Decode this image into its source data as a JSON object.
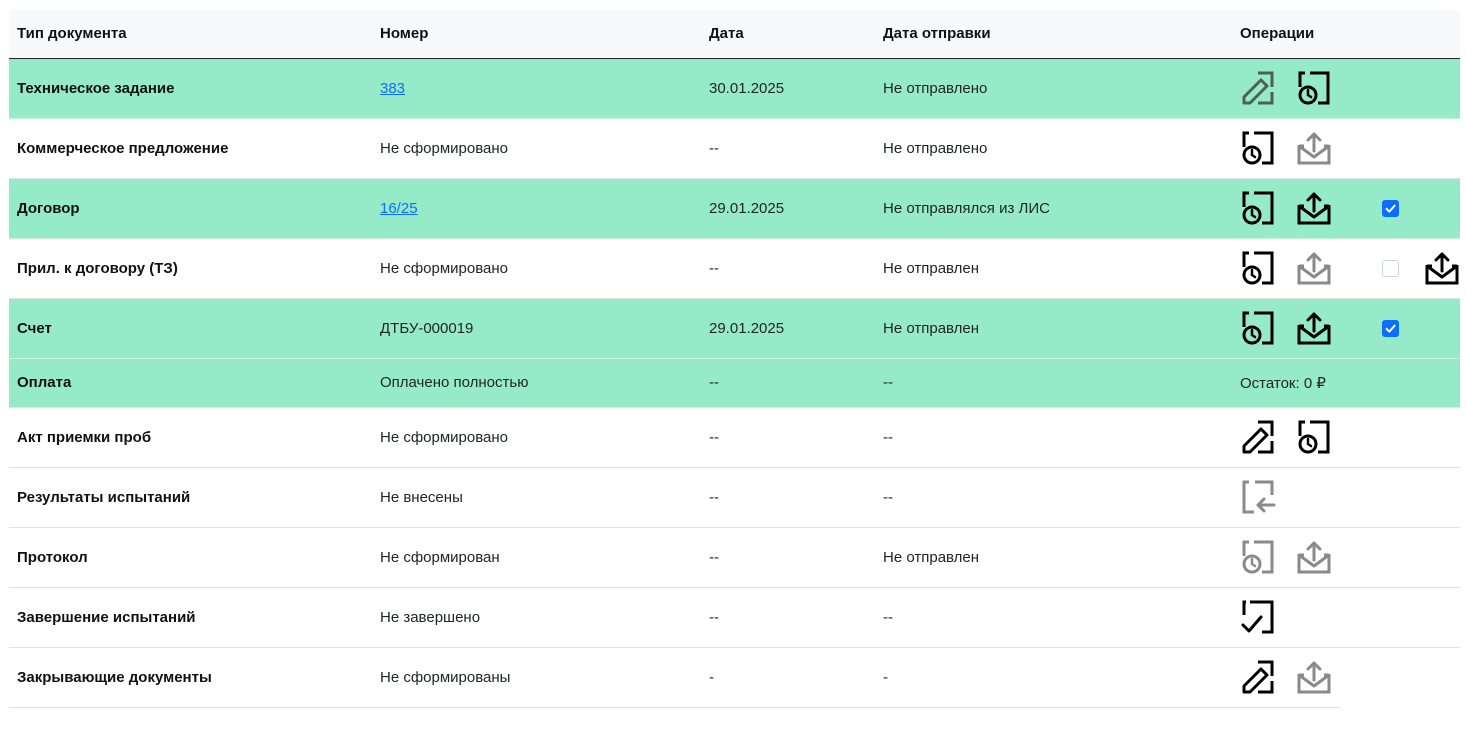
{
  "headers": {
    "type": "Тип документа",
    "number": "Номер",
    "date": "Дата",
    "sent": "Дата отправки",
    "ops": "Операции"
  },
  "rows": [
    {
      "type": "Техническое задание",
      "number": "383",
      "date": "30.01.2025",
      "sent": "Не отправлено"
    },
    {
      "type": "Коммерческое предложение",
      "number": "Не сформировано",
      "date": "--",
      "sent": "Не отправлено"
    },
    {
      "type": "Договор",
      "number": "16/25",
      "date": "29.01.2025",
      "sent": "Не отправлялся из ЛИС"
    },
    {
      "type": "Прил. к договору (ТЗ)",
      "number": "Не сформировано",
      "date": "--",
      "sent": "Не отправлен"
    },
    {
      "type": "Счет",
      "number": "ДТБУ-000019",
      "date": "29.01.2025",
      "sent": "Не отправлен"
    },
    {
      "type": "Оплата",
      "number": "Оплачено полностью",
      "date": "--",
      "sent": "--",
      "balance": "Остаток: 0 ₽"
    },
    {
      "type": "Акт приемки проб",
      "number": "Не сформировано",
      "date": "--",
      "sent": "--"
    },
    {
      "type": "Результаты испытаний",
      "number": "Не внесены",
      "date": "--",
      "sent": "--"
    },
    {
      "type": "Протокол",
      "number": "Не сформирован",
      "date": "--",
      "sent": "Не отправлен"
    },
    {
      "type": "Завершение испытаний",
      "number": "Не завершено",
      "date": "--",
      "sent": "--"
    },
    {
      "type": "Закрывающие документы",
      "number": "Не сформированы",
      "date": "-",
      "sent": "-"
    }
  ],
  "icons": {
    "edit": "edit-document-icon",
    "history": "history-document-icon",
    "send": "send-mail-icon",
    "import": "import-document-icon",
    "complete": "complete-document-icon"
  },
  "colors": {
    "row_highlight": "#95ebc7",
    "link": "#0d6efd",
    "checkbox": "#0d6efd",
    "icon_active": "#000000",
    "icon_disabled": "#8a8a8a"
  }
}
